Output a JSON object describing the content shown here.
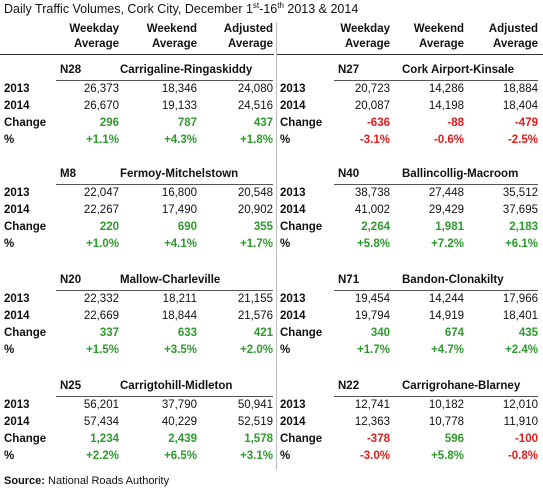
{
  "title": {
    "main": "Daily Traffic Volumes, Cork City, December 1",
    "sup1": "st",
    "mid": "-16",
    "sup2": "th",
    "tail": " 2013 & 2014"
  },
  "headers": {
    "weekday": [
      "Weekday",
      "Average"
    ],
    "weekend": [
      "Weekend",
      "Average"
    ],
    "adjusted": [
      "Adjusted",
      "Average"
    ]
  },
  "row_labels": {
    "y2013": "2013",
    "y2014": "2014",
    "change": "Change",
    "pct": "%"
  },
  "left_blocks": [
    {
      "code": "N28",
      "name": "Carrigaline-Ringaskiddy",
      "y2013": [
        "26,373",
        "18,346",
        "24,080"
      ],
      "y2014": [
        "26,670",
        "19,133",
        "24,516"
      ],
      "change": [
        "296",
        "787",
        "437"
      ],
      "pct": [
        "+1.1%",
        "+4.3%",
        "+1.8%"
      ]
    },
    {
      "code": "M8",
      "name": "Fermoy-Mitchelstown",
      "y2013": [
        "22,047",
        "16,800",
        "20,548"
      ],
      "y2014": [
        "22,267",
        "17,490",
        "20,902"
      ],
      "change": [
        "220",
        "690",
        "355"
      ],
      "pct": [
        "+1.0%",
        "+4.1%",
        "+1.7%"
      ]
    },
    {
      "code": "N20",
      "name": "Mallow-Charleville",
      "y2013": [
        "22,332",
        "18,211",
        "21,155"
      ],
      "y2014": [
        "22,669",
        "18,844",
        "21,576"
      ],
      "change": [
        "337",
        "633",
        "421"
      ],
      "pct": [
        "+1.5%",
        "+3.5%",
        "+2.0%"
      ]
    },
    {
      "code": "N25",
      "name": "Carrigtohill-Midleton",
      "y2013": [
        "56,201",
        "37,790",
        "50,941"
      ],
      "y2014": [
        "57,434",
        "40,229",
        "52,519"
      ],
      "change": [
        "1,234",
        "2,439",
        "1,578"
      ],
      "pct": [
        "+2.2%",
        "+6.5%",
        "+3.1%"
      ]
    }
  ],
  "right_blocks": [
    {
      "code": "N27",
      "name": "Cork Airport-Kinsale",
      "y2013": [
        "20,723",
        "14,286",
        "18,884"
      ],
      "y2014": [
        "20,087",
        "14,198",
        "18,404"
      ],
      "change": [
        "-636",
        "-88",
        "-479"
      ],
      "pct": [
        "-3.1%",
        "-0.6%",
        "-2.5%"
      ]
    },
    {
      "code": "N40",
      "name": "Ballincollig-Macroom",
      "y2013": [
        "38,738",
        "27,448",
        "35,512"
      ],
      "y2014": [
        "41,002",
        "29,429",
        "37,695"
      ],
      "change": [
        "2,264",
        "1,981",
        "2,183"
      ],
      "pct": [
        "+5.8%",
        "+7.2%",
        "+6.1%"
      ]
    },
    {
      "code": "N71",
      "name": "Bandon-Clonakilty",
      "y2013": [
        "19,454",
        "14,244",
        "17,966"
      ],
      "y2014": [
        "19,794",
        "14,919",
        "18,401"
      ],
      "change": [
        "340",
        "674",
        "435"
      ],
      "pct": [
        "+1.7%",
        "+4.7%",
        "+2.4%"
      ]
    },
    {
      "code": "N22",
      "name": "Carrigrohane-Blarney",
      "y2013": [
        "12,741",
        "10,182",
        "12,010"
      ],
      "y2014": [
        "12,363",
        "10,778",
        "11,910"
      ],
      "change": [
        "-378",
        "596",
        "-100"
      ],
      "pct": [
        "-3.0%",
        "+5.8%",
        "-0.8%"
      ]
    }
  ],
  "colors": {
    "positive": "#2e9a2e",
    "negative": "#e01b1b"
  },
  "source": {
    "label": "Source:",
    "text": " National Roads Authority"
  }
}
